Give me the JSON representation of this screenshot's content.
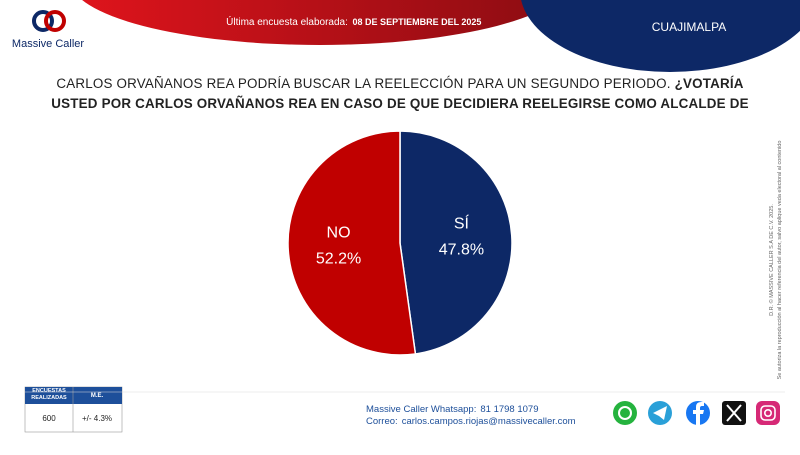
{
  "header": {
    "logo": "Massive Caller",
    "survey_label": "Última encuesta elaborada:",
    "survey_date": "08 DE SEPTIEMBRE DEL 2025",
    "region": "CUAJIMALPA"
  },
  "question": {
    "intro": "CARLOS ORVAÑANOS REA PODRÍA BUSCAR LA REELECCIÓN PARA UN SEGUNDO PERIODO.",
    "emphasis": "¿VOTARÍA USTED POR CARLOS ORVAÑANOS REA EN CASO DE QUE DECIDIERA REELEGIRSE COMO ALCALDE DE CUAJIMALPA?"
  },
  "chart_data": {
    "type": "pie",
    "categories": [
      "SÍ",
      "NO"
    ],
    "values": [
      47.8,
      52.2
    ],
    "value_labels": [
      "47.8%",
      "52.2%"
    ],
    "colors": [
      "#0d2866",
      "#c00000"
    ]
  },
  "footer": {
    "table": {
      "headers": [
        "ENCUESTAS REALIZADAS",
        "M.E."
      ],
      "row": [
        "600",
        "+/- 4.3%"
      ]
    },
    "whatsapp_label": "Massive Caller Whatsapp:",
    "whatsapp": "81 1798 1079",
    "email_label": "Correo:",
    "email": "carlos.campos.riojas@massivecaller.com"
  },
  "legal": [
    "D.R. © MASSIVE CALLER S.A DE C.V. 2025.",
    "Se autoriza la reproducción al hacer referencia del autor, salvo aplique veda electoral al contenido"
  ]
}
